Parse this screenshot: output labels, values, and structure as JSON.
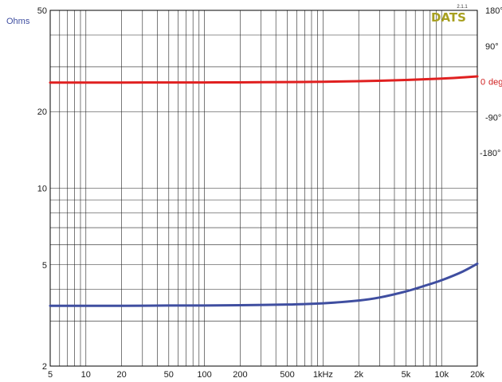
{
  "chart_data": {
    "type": "line",
    "x_scale": "log",
    "y_left_scale": "log",
    "x_range": [
      5,
      20000
    ],
    "y_left_range": [
      2,
      50
    ],
    "y_right_range": [
      -180,
      180
    ],
    "x_tick_values": [
      5,
      10,
      20,
      50,
      100,
      200,
      500,
      1000,
      2000,
      5000,
      10000,
      20000
    ],
    "x_tick_labels": [
      "5",
      "10",
      "20",
      "50",
      "100",
      "200",
      "500",
      "1kHz",
      "2k",
      "5k",
      "10k",
      "20k"
    ],
    "y_left_tick_values": [
      2,
      5,
      10,
      20,
      50
    ],
    "y_left_tick_labels": [
      "2",
      "5",
      "10",
      "20",
      "50"
    ],
    "y_left_unit": "Ohms",
    "y_right_tick_values": [
      180,
      90,
      0,
      -90,
      -180
    ],
    "y_right_tick_labels": [
      "180°",
      "90°",
      "0",
      "-90°",
      "-180°"
    ],
    "y_right_unit": "deg",
    "grid": true,
    "series": [
      {
        "axis": "left",
        "color": "#3f4ea0",
        "x": [
          5,
          10,
          20,
          50,
          100,
          200,
          500,
          1000,
          2000,
          3000,
          5000,
          7000,
          10000,
          15000,
          20000
        ],
        "values": [
          3.45,
          3.45,
          3.45,
          3.46,
          3.46,
          3.47,
          3.49,
          3.53,
          3.62,
          3.72,
          3.93,
          4.12,
          4.35,
          4.7,
          5.05
        ]
      },
      {
        "axis": "right",
        "color": "#e02020",
        "x": [
          5,
          10,
          20,
          50,
          100,
          200,
          500,
          1000,
          2000,
          5000,
          10000,
          15000,
          20000
        ],
        "values": [
          -2.5,
          -2.5,
          -2.4,
          -2.3,
          -2.2,
          -1.9,
          -1.2,
          -0.5,
          1,
          4,
          7.5,
          10.5,
          13
        ]
      }
    ]
  },
  "logo": {
    "brand": "DATS",
    "version": "2.1.1",
    "color": "#a8a020"
  }
}
